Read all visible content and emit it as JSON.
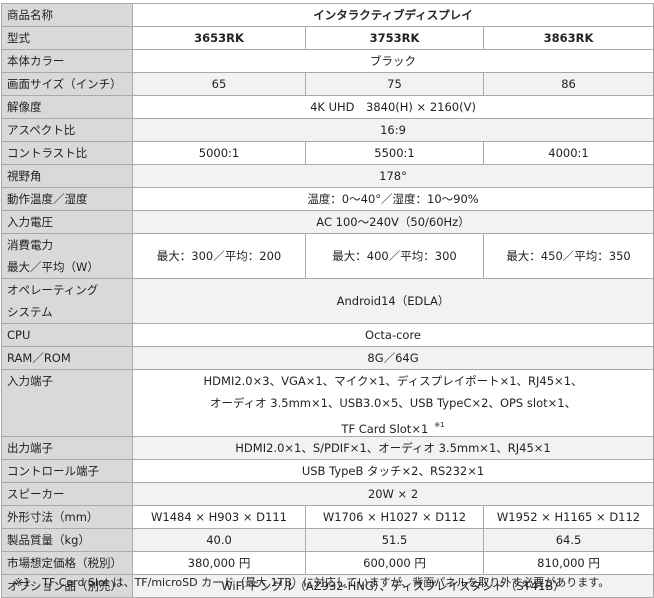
{
  "table": {
    "rows": [
      {
        "label": [
          "商品名称"
        ],
        "cells": [
          [
            "インタラクティブディスプレイ"
          ]
        ]
      },
      {
        "label": [
          "型式"
        ],
        "cells": [
          [
            "3653RK"
          ],
          [
            "3753RK"
          ],
          [
            "3863RK"
          ]
        ]
      },
      {
        "label": [
          "本体カラー"
        ],
        "cells": [
          [
            "ブラック"
          ]
        ]
      },
      {
        "label": [
          "画面サイズ（インチ）"
        ],
        "cells": [
          [
            "65"
          ],
          [
            "75"
          ],
          [
            "86"
          ]
        ]
      },
      {
        "label": [
          "解像度"
        ],
        "cells": [
          [
            "4K UHD　3840(H) × 2160(V)"
          ]
        ]
      },
      {
        "label": [
          "アスペクト比"
        ],
        "cells": [
          [
            "16:9"
          ]
        ]
      },
      {
        "label": [
          "コントラスト比"
        ],
        "cells": [
          [
            "5000:1"
          ],
          [
            "5500:1"
          ],
          [
            "4000:1"
          ]
        ]
      },
      {
        "label": [
          "視野角"
        ],
        "cells": [
          [
            "178°"
          ]
        ]
      },
      {
        "label": [
          "動作温度／湿度"
        ],
        "cells": [
          [
            "温度：0～40°／湿度：10～90%"
          ]
        ]
      },
      {
        "label": [
          "入力電圧"
        ],
        "cells": [
          [
            "AC 100～240V（50/60Hz）"
          ]
        ]
      },
      {
        "label": [
          "消費電力",
          "最大／平均（W）"
        ],
        "cells": [
          [
            "最大：300／平均：200"
          ],
          [
            "最大：400／平均：300"
          ],
          [
            "最大：450／平均：350"
          ]
        ]
      },
      {
        "label": [
          "オペレーティング",
          "システム"
        ],
        "cells": [
          [
            "Android14（EDLA）"
          ]
        ]
      },
      {
        "label": [
          "CPU"
        ],
        "cells": [
          [
            "Octa-core"
          ]
        ]
      },
      {
        "label": [
          "RAM／ROM"
        ],
        "cells": [
          [
            "8G／64G"
          ]
        ]
      },
      {
        "label": [
          "入力端子"
        ],
        "cells": [
          [
            "HDMI2.0×3、VGA×1、マイク×1、ディスプレイポート×1、RJ45×1、",
            "オーディオ 3.5mm×1、USB3.0×5、USB TypeC×2、OPS slot×1、",
            "TF Card Slot×1"
          ]
        ],
        "note_mark": "※1"
      },
      {
        "label": [
          "出力端子"
        ],
        "cells": [
          [
            "HDMI2.0×1、S/PDIF×1、オーディオ 3.5mm×1、RJ45×1"
          ]
        ]
      },
      {
        "label": [
          "コントロール端子"
        ],
        "cells": [
          [
            "USB TypeB タッチ×2、RS232×1"
          ]
        ]
      },
      {
        "label": [
          "スピーカー"
        ],
        "cells": [
          [
            "20W × 2"
          ]
        ]
      },
      {
        "label": [
          "外形寸法（mm）"
        ],
        "cells": [
          [
            "W1484 × H903 × D111"
          ],
          [
            "W1706 × H1027 × D112"
          ],
          [
            "W1952 × H1165 × D112"
          ]
        ]
      },
      {
        "label": [
          "製品質量（kg）"
        ],
        "cells": [
          [
            "40.0"
          ],
          [
            "51.5"
          ],
          [
            "64.5"
          ]
        ]
      },
      {
        "label": [
          "市場想定価格（税別）"
        ],
        "cells": [
          [
            "380,000 円"
          ],
          [
            "600,000 円"
          ],
          [
            "810,000 円"
          ]
        ]
      },
      {
        "label": [
          "オプション品（別売）"
        ],
        "cells": [
          [
            "WiFi ドングル（AZ932-HNG）、ディスプレイスタンド（ST41B）"
          ]
        ]
      }
    ]
  },
  "footnote": {
    "mark": "※1",
    "text": "TF Card Slot は、TF/microSD カード（最大 1TB）に対応していますが、背面パネルを取り外す必要があります。"
  }
}
